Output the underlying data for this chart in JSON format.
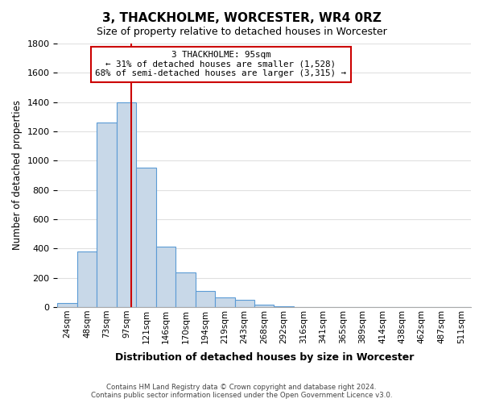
{
  "title": "3, THACKHOLME, WORCESTER, WR4 0RZ",
  "subtitle": "Size of property relative to detached houses in Worcester",
  "xlabel": "Distribution of detached houses by size in Worcester",
  "ylabel": "Number of detached properties",
  "bar_labels": [
    "24sqm",
    "48sqm",
    "73sqm",
    "97sqm",
    "121sqm",
    "146sqm",
    "170sqm",
    "194sqm",
    "219sqm",
    "243sqm",
    "268sqm",
    "292sqm",
    "316sqm",
    "341sqm",
    "365sqm",
    "389sqm",
    "414sqm",
    "438sqm",
    "462sqm",
    "487sqm",
    "511sqm"
  ],
  "bar_values": [
    25,
    380,
    1260,
    1400,
    950,
    415,
    235,
    110,
    68,
    50,
    15,
    5,
    2,
    1,
    0,
    0,
    0,
    0,
    0,
    0,
    0
  ],
  "bar_color": "#c8d8e8",
  "bar_edge_color": "#5b9bd5",
  "vline_x": 3.25,
  "vline_color": "#cc0000",
  "ylim": [
    0,
    1800
  ],
  "yticks": [
    0,
    200,
    400,
    600,
    800,
    1000,
    1200,
    1400,
    1600,
    1800
  ],
  "annotation_title": "3 THACKHOLME: 95sqm",
  "annotation_line1": "← 31% of detached houses are smaller (1,528)",
  "annotation_line2": "68% of semi-detached houses are larger (3,315) →",
  "annotation_box_color": "#ffffff",
  "annotation_box_edge": "#cc0000",
  "footer_line1": "Contains HM Land Registry data © Crown copyright and database right 2024.",
  "footer_line2": "Contains public sector information licensed under the Open Government Licence v3.0.",
  "background_color": "#ffffff",
  "grid_color": "#e0e0e0"
}
